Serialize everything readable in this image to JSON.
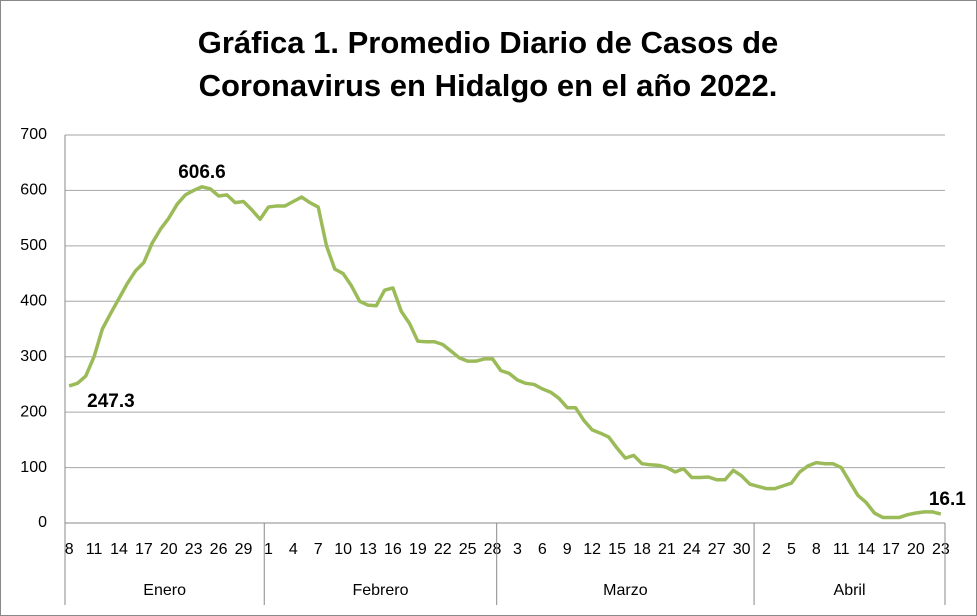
{
  "chart_data": {
    "type": "line",
    "title": [
      "Gráfica 1. Promedio Diario de Casos de",
      "Coronavirus en Hidalgo en el año 2022."
    ],
    "months": [
      "Enero",
      "Febrero",
      "Marzo",
      "Abril"
    ],
    "categories": [
      "8",
      null,
      null,
      "11",
      null,
      null,
      "14",
      null,
      null,
      "17",
      null,
      null,
      "20",
      null,
      null,
      "23",
      null,
      null,
      "26",
      null,
      null,
      "29",
      null,
      null,
      "1",
      null,
      null,
      "4",
      null,
      null,
      "7",
      null,
      null,
      "10",
      null,
      null,
      "13",
      null,
      null,
      "16",
      null,
      null,
      "19",
      null,
      null,
      "22",
      null,
      null,
      "25",
      null,
      null,
      "28",
      null,
      null,
      "3",
      null,
      null,
      "6",
      null,
      null,
      "9",
      null,
      null,
      "12",
      null,
      null,
      "15",
      null,
      null,
      "18",
      null,
      null,
      "21",
      null,
      null,
      "24",
      null,
      null,
      "27",
      null,
      null,
      "30",
      null,
      null,
      "2",
      null,
      null,
      "5",
      null,
      null,
      "8",
      null,
      null,
      "11",
      null,
      null,
      "14",
      null,
      null,
      "17",
      null,
      null,
      "20",
      null,
      null,
      "23"
    ],
    "values": [
      247.3,
      252,
      265,
      300,
      350,
      378,
      405,
      432,
      455,
      470,
      505,
      530,
      550,
      575,
      592,
      600,
      606.6,
      603,
      590,
      592,
      578,
      580,
      565,
      548,
      570,
      572,
      572,
      580,
      588,
      578,
      570,
      500,
      458,
      450,
      428,
      400,
      393,
      392,
      420,
      424,
      382,
      360,
      328,
      327,
      327,
      322,
      310,
      298,
      292,
      292,
      296,
      296,
      275,
      270,
      258,
      252,
      250,
      242,
      236,
      225,
      208,
      208,
      185,
      168,
      162,
      155,
      135,
      117,
      122,
      107,
      105,
      104,
      100,
      92,
      98,
      82,
      82,
      83,
      78,
      78,
      95,
      85,
      70,
      66,
      62,
      62,
      67,
      72,
      92,
      103,
      109,
      107,
      107,
      100,
      75,
      50,
      37,
      18,
      10,
      10,
      10,
      15,
      18,
      20,
      20,
      16.1
    ],
    "value_labels": [
      "247.3",
      null,
      null,
      null,
      null,
      null,
      null,
      null,
      null,
      null,
      null,
      null,
      null,
      null,
      null,
      null,
      "606.6",
      null,
      null,
      null,
      null,
      null,
      null,
      null,
      null,
      null,
      null,
      null,
      null,
      null,
      null,
      null,
      null,
      null,
      null,
      null,
      null,
      null,
      null,
      null,
      null,
      null,
      null,
      null,
      null,
      null,
      null,
      null,
      null,
      null,
      null,
      null,
      null,
      null,
      null,
      null,
      null,
      null,
      null,
      null,
      null,
      null,
      null,
      null,
      null,
      null,
      null,
      null,
      null,
      null,
      null,
      null,
      null,
      null,
      null,
      null,
      null,
      null,
      null,
      null,
      null,
      null,
      null,
      null,
      null,
      null,
      null,
      null,
      null,
      null,
      null,
      null,
      null,
      null,
      null,
      null,
      null,
      null,
      null,
      null,
      null,
      null,
      null,
      null,
      null,
      "16.1"
    ],
    "color": "#9bbb59",
    "ylim": [
      0,
      700
    ],
    "yticks": [
      0,
      100,
      200,
      300,
      400,
      500,
      600,
      700
    ],
    "grid": true
  }
}
